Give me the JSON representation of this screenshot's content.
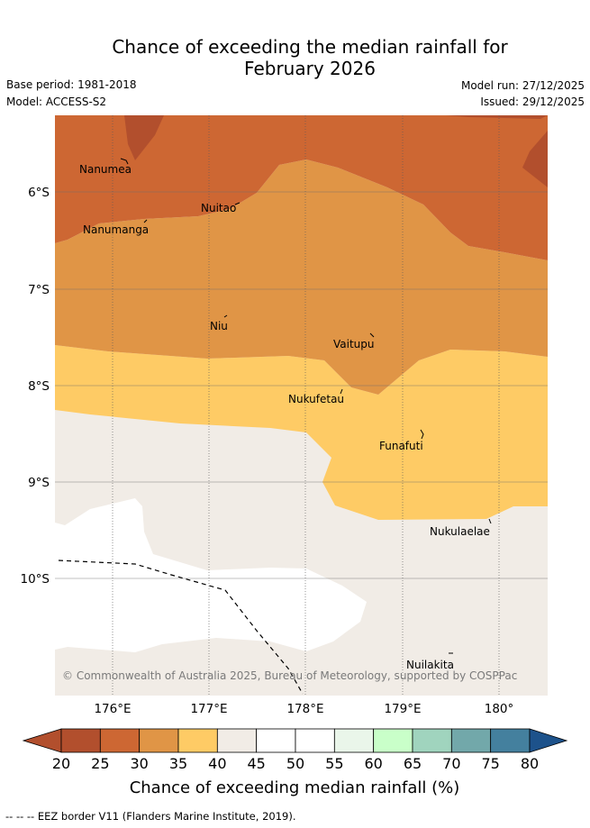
{
  "title": "Chance of exceeding the median rainfall for\nFebruary 2026",
  "meta": {
    "base_period": "Base period: 1981-2018",
    "model": "Model: ACCESS-S2",
    "model_run": "Model run: 27/12/2025",
    "issued": "Issued: 29/12/2025"
  },
  "map": {
    "lat_labels": [
      "6°S",
      "7°S",
      "8°S",
      "9°S",
      "10°S"
    ],
    "lon_labels": [
      "176°E",
      "177°E",
      "178°E",
      "179°E",
      "180°"
    ],
    "places": [
      "Nanumea",
      "Nuitao",
      "Nanumanga",
      "Niu",
      "Vaitupu",
      "Nukufetau",
      "Funafuti",
      "Nukulaelae",
      "Nuilakita"
    ],
    "copyright": "© Commonwealth of Australia 2025, Bureau of Meteorology, supported by COSPPac"
  },
  "legend": {
    "ticks": [
      "20",
      "25",
      "30",
      "35",
      "40",
      "45",
      "50",
      "55",
      "60",
      "65",
      "70",
      "75",
      "80"
    ],
    "title": "Chance of exceeding median rainfall (%)",
    "colors": [
      "#b24f2d",
      "#cd6733",
      "#e09546",
      "#fecb65",
      "#f1ece6",
      "#ffffff",
      "#ffffff",
      "#eaf6ea",
      "#c9ffc9",
      "#a0d4be",
      "#72a8aa",
      "#44809e"
    ],
    "low_color": "#b24f2d",
    "high_color": "#1d528b"
  },
  "footer": "--  --  -- EEZ border V11 (Flanders Marine Institute, 2019)."
}
